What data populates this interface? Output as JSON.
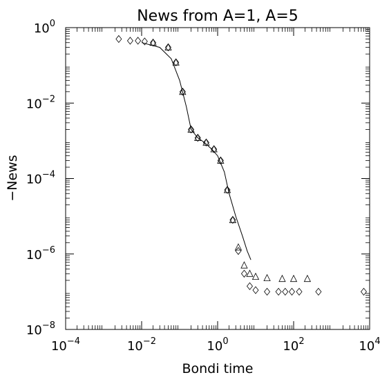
{
  "chart_data": {
    "type": "scatter",
    "title": "News from A=1, A=5",
    "xlabel": "Bondi time",
    "ylabel": "−News",
    "xscale": "log",
    "yscale": "log",
    "xlim": [
      0.0001,
      10000
    ],
    "ylim": [
      1e-08,
      1
    ],
    "grid": false,
    "x_ticks": [
      {
        "base": "10",
        "exp": "−4",
        "value": 0.0001
      },
      {
        "base": "10",
        "exp": "−2",
        "value": 0.01
      },
      {
        "base": "10",
        "exp": "0",
        "value": 1
      },
      {
        "base": "10",
        "exp": "2",
        "value": 100
      },
      {
        "base": "10",
        "exp": "4",
        "value": 10000
      }
    ],
    "y_ticks": [
      {
        "base": "10",
        "exp": "−8",
        "value": 1e-08
      },
      {
        "base": "10",
        "exp": "−6",
        "value": 1e-06
      },
      {
        "base": "10",
        "exp": "−4",
        "value": 0.0001
      },
      {
        "base": "10",
        "exp": "−2",
        "value": 0.01
      },
      {
        "base": "10",
        "exp": "0",
        "value": 1
      }
    ],
    "series": [
      {
        "marker": "line",
        "x": [
          0.01,
          0.03,
          0.06,
          0.1,
          0.15,
          0.2,
          0.3,
          0.45,
          0.7,
          1.0,
          1.5,
          2.0,
          3.0,
          4.5,
          6.0,
          7.5
        ],
        "y": [
          0.4,
          0.3,
          0.15,
          0.04,
          0.008,
          0.002,
          0.0012,
          0.0009,
          0.0006,
          0.0004,
          0.00015,
          4e-05,
          1e-05,
          3e-06,
          1.2e-06,
          7e-07
        ]
      },
      {
        "marker": "triangle",
        "x": [
          0.02,
          0.05,
          0.08,
          0.12,
          0.2,
          0.3,
          0.5,
          0.8,
          1.2,
          1.8,
          2.5,
          3.5,
          5.0,
          7.0,
          10,
          20,
          50,
          100,
          230
        ],
        "y": [
          0.4,
          0.3,
          0.12,
          0.02,
          0.002,
          0.0012,
          0.0009,
          0.0006,
          0.0003,
          5e-05,
          8e-06,
          1.5e-06,
          5e-07,
          3e-07,
          2.5e-07,
          2.3e-07,
          2.2e-07,
          2.2e-07,
          2.2e-07
        ]
      },
      {
        "marker": "diamond",
        "x": [
          0.0025,
          0.005,
          0.008,
          0.012,
          0.02,
          0.05,
          0.08,
          0.12,
          0.2,
          0.3,
          0.5,
          0.8,
          1.2,
          1.8,
          2.5,
          3.5,
          5.0,
          7.0,
          10,
          20,
          40,
          60,
          90,
          140,
          450,
          7000
        ],
        "y": [
          0.5,
          0.45,
          0.45,
          0.43,
          0.4,
          0.3,
          0.12,
          0.02,
          0.002,
          0.0012,
          0.0009,
          0.0006,
          0.0003,
          5e-05,
          8e-06,
          1.2e-06,
          3e-07,
          1.4e-07,
          1.1e-07,
          1e-07,
          1e-07,
          1e-07,
          1e-07,
          1e-07,
          1e-07,
          1e-07
        ]
      }
    ]
  }
}
